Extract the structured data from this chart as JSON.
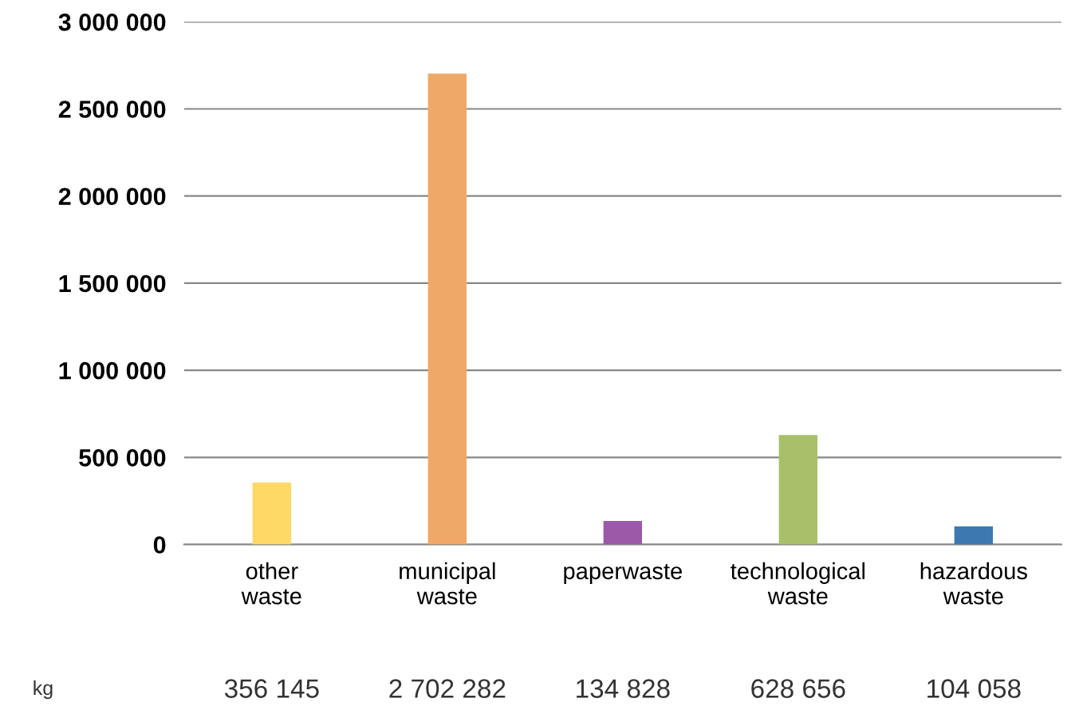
{
  "chart_data": {
    "type": "bar",
    "categories": [
      "other\nwaste",
      "municipal\nwaste",
      "paperwaste",
      "technological\nwaste",
      "hazardous\nwaste"
    ],
    "values": [
      356145,
      2702282,
      134828,
      628656,
      104058
    ],
    "colors": [
      "#ffd966",
      "#f0a868",
      "#9b59a8",
      "#a9c06a",
      "#3d78b0"
    ],
    "value_labels": [
      "356 145",
      "2 702 282",
      "134 828",
      "628 656",
      "104 058"
    ],
    "ylim": [
      0,
      3000000
    ],
    "yticks": [
      {
        "value": 0,
        "label": "0"
      },
      {
        "value": 500000,
        "label": "500 000"
      },
      {
        "value": 1000000,
        "label": "1 000 000"
      },
      {
        "value": 1500000,
        "label": "1 500 000"
      },
      {
        "value": 2000000,
        "label": "2 000 000"
      },
      {
        "value": 2500000,
        "label": "2 500 000"
      },
      {
        "value": 3000000,
        "label": "3 000 000"
      }
    ],
    "grid": "y",
    "annotations": [
      "kg"
    ]
  }
}
